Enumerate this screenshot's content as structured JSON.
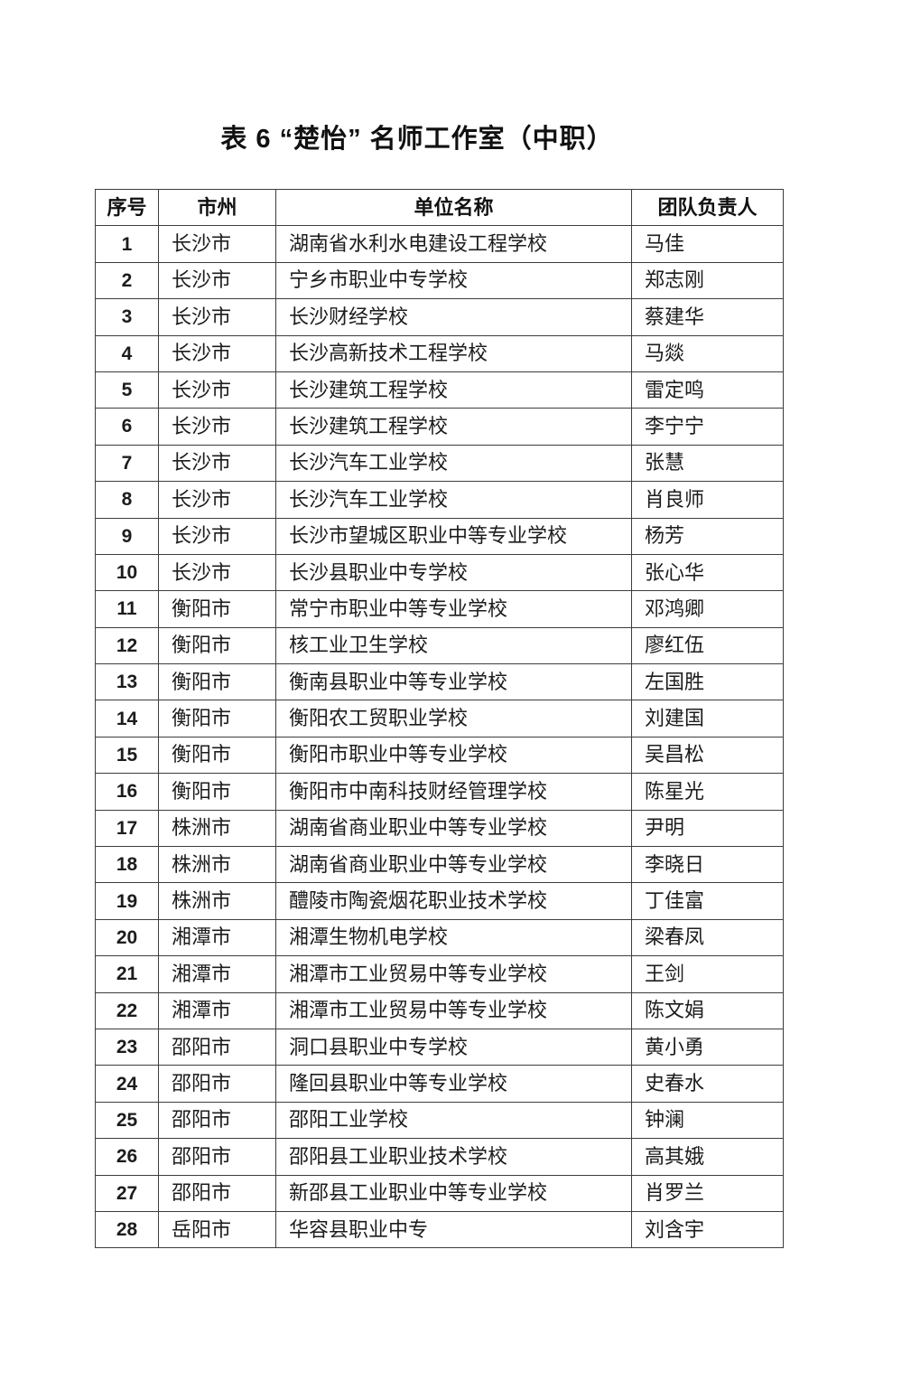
{
  "document": {
    "title": "表 6 “楚怡” 名师工作室（中职）"
  },
  "colors": {
    "background": "#ffffff",
    "text": "#1c1c1c",
    "border": "#3d3d3d"
  },
  "table": {
    "headers": [
      "序号",
      "市州",
      "单位名称",
      "团队负责人"
    ],
    "rows": [
      {
        "index": "1",
        "city": "长沙市",
        "unit": "湖南省水利水电建设工程学校",
        "leader": "马佳"
      },
      {
        "index": "2",
        "city": "长沙市",
        "unit": "宁乡市职业中专学校",
        "leader": "郑志刚"
      },
      {
        "index": "3",
        "city": "长沙市",
        "unit": "长沙财经学校",
        "leader": "蔡建华"
      },
      {
        "index": "4",
        "city": "长沙市",
        "unit": "长沙高新技术工程学校",
        "leader": "马燚"
      },
      {
        "index": "5",
        "city": "长沙市",
        "unit": "长沙建筑工程学校",
        "leader": "雷定鸣"
      },
      {
        "index": "6",
        "city": "长沙市",
        "unit": "长沙建筑工程学校",
        "leader": "李宁宁"
      },
      {
        "index": "7",
        "city": "长沙市",
        "unit": "长沙汽车工业学校",
        "leader": "张慧"
      },
      {
        "index": "8",
        "city": "长沙市",
        "unit": "长沙汽车工业学校",
        "leader": "肖良师"
      },
      {
        "index": "9",
        "city": "长沙市",
        "unit": "长沙市望城区职业中等专业学校",
        "leader": "杨芳"
      },
      {
        "index": "10",
        "city": "长沙市",
        "unit": "长沙县职业中专学校",
        "leader": "张心华"
      },
      {
        "index": "11",
        "city": "衡阳市",
        "unit": "常宁市职业中等专业学校",
        "leader": "邓鸿卿"
      },
      {
        "index": "12",
        "city": "衡阳市",
        "unit": "核工业卫生学校",
        "leader": "廖红伍"
      },
      {
        "index": "13",
        "city": "衡阳市",
        "unit": "衡南县职业中等专业学校",
        "leader": "左国胜"
      },
      {
        "index": "14",
        "city": "衡阳市",
        "unit": "衡阳农工贸职业学校",
        "leader": "刘建国"
      },
      {
        "index": "15",
        "city": "衡阳市",
        "unit": "衡阳市职业中等专业学校",
        "leader": "吴昌松"
      },
      {
        "index": "16",
        "city": "衡阳市",
        "unit": "衡阳市中南科技财经管理学校",
        "leader": "陈星光"
      },
      {
        "index": "17",
        "city": "株洲市",
        "unit": "湖南省商业职业中等专业学校",
        "leader": "尹明"
      },
      {
        "index": "18",
        "city": "株洲市",
        "unit": "湖南省商业职业中等专业学校",
        "leader": "李晓日"
      },
      {
        "index": "19",
        "city": "株洲市",
        "unit": "醴陵市陶瓷烟花职业技术学校",
        "leader": "丁佳富"
      },
      {
        "index": "20",
        "city": "湘潭市",
        "unit": "湘潭生物机电学校",
        "leader": "梁春凤"
      },
      {
        "index": "21",
        "city": "湘潭市",
        "unit": "湘潭市工业贸易中等专业学校",
        "leader": "王剑"
      },
      {
        "index": "22",
        "city": "湘潭市",
        "unit": "湘潭市工业贸易中等专业学校",
        "leader": "陈文娟"
      },
      {
        "index": "23",
        "city": "邵阳市",
        "unit": "洞口县职业中专学校",
        "leader": "黄小勇"
      },
      {
        "index": "24",
        "city": "邵阳市",
        "unit": "隆回县职业中等专业学校",
        "leader": "史春水"
      },
      {
        "index": "25",
        "city": "邵阳市",
        "unit": "邵阳工业学校",
        "leader": "钟澜"
      },
      {
        "index": "26",
        "city": "邵阳市",
        "unit": "邵阳县工业职业技术学校",
        "leader": "高其娥"
      },
      {
        "index": "27",
        "city": "邵阳市",
        "unit": "新邵县工业职业中等专业学校",
        "leader": "肖罗兰"
      },
      {
        "index": "28",
        "city": "岳阳市",
        "unit": "华容县职业中专",
        "leader": "刘含宇"
      }
    ]
  }
}
